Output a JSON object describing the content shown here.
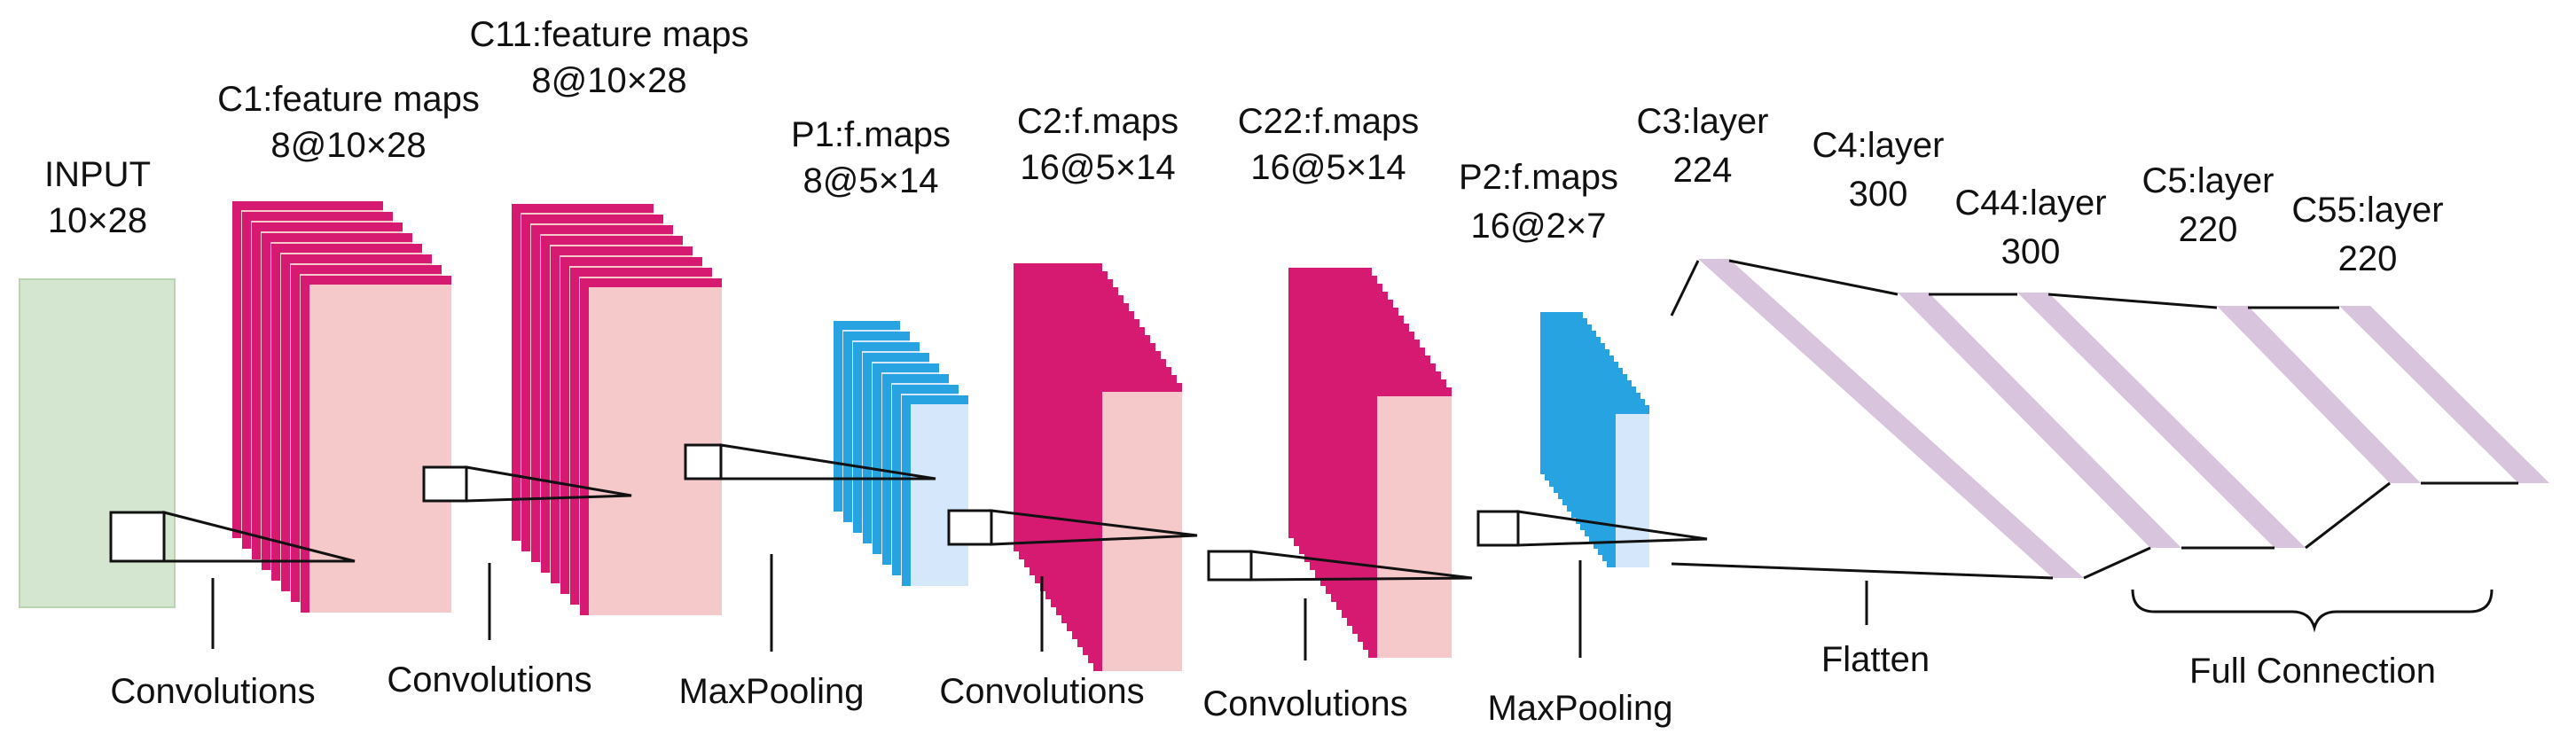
{
  "colors": {
    "input_fill": "#d4e6cf",
    "conv_edge": "#d61a72",
    "conv_fill": "#f5c9ca",
    "pool_edge": "#27a3e2",
    "pool_fill": "#d4e7fb",
    "dense_fill": "#d9c4dd",
    "line": "#111111"
  },
  "layers": {
    "input": {
      "name": "INPUT",
      "shape": "10×28"
    },
    "c1": {
      "name": "C1:feature maps",
      "shape": "8@10×28"
    },
    "c11": {
      "name": "C11:feature maps",
      "shape": "8@10×28"
    },
    "p1": {
      "name": "P1:f.maps",
      "shape": "8@5×14"
    },
    "c2": {
      "name": "C2:f.maps",
      "shape": "16@5×14"
    },
    "c22": {
      "name": "C22:f.maps",
      "shape": "16@5×14"
    },
    "p2": {
      "name": "P2:f.maps",
      "shape": "16@2×7"
    },
    "c3": {
      "name": "C3:layer",
      "shape": "224"
    },
    "c4": {
      "name": "C4:layer",
      "shape": "300"
    },
    "c44": {
      "name": "C44:layer",
      "shape": "300"
    },
    "c5": {
      "name": "C5:layer",
      "shape": "220"
    },
    "c55": {
      "name": "C55:layer",
      "shape": "220"
    }
  },
  "operations": {
    "op1": "Convolutions",
    "op2": "Convolutions",
    "op3": "MaxPooling",
    "op4": "Convolutions",
    "op5": "Convolutions",
    "op6": "MaxPooling",
    "op7": "Flatten",
    "op8": "Full Connection"
  },
  "stacks": {
    "c1": {
      "maps": 8
    },
    "c11": {
      "maps": 8
    },
    "p1": {
      "maps": 8
    },
    "c2": {
      "maps": 16
    },
    "c22": {
      "maps": 16
    },
    "p2": {
      "maps": 16
    }
  }
}
